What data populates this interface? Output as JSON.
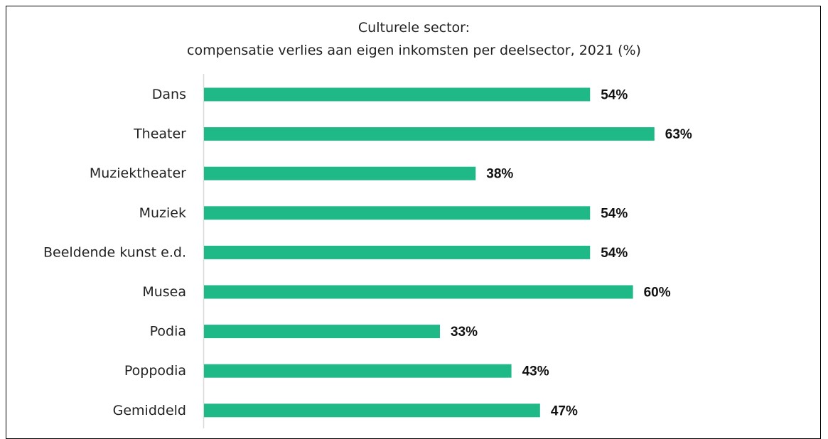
{
  "chart_data": {
    "type": "bar",
    "orientation": "horizontal",
    "title": "Culturele sector:",
    "subtitle": "compensatie verlies aan eigen inkomsten per deelsector, 2021 (%)",
    "categories": [
      "Dans",
      "Theater",
      "Muziektheater",
      "Muziek",
      "Beeldende kunst e.d.",
      "Musea",
      "Podia",
      "Poppodia",
      "Gemiddeld"
    ],
    "values": [
      54,
      63,
      38,
      54,
      54,
      60,
      33,
      43,
      47
    ],
    "value_labels": [
      "54%",
      "63%",
      "38%",
      "54%",
      "54%",
      "60%",
      "33%",
      "43%",
      "47%"
    ],
    "xlim": [
      0,
      100
    ],
    "grid": false,
    "legend": "none",
    "bar_color": "#1fb887"
  }
}
